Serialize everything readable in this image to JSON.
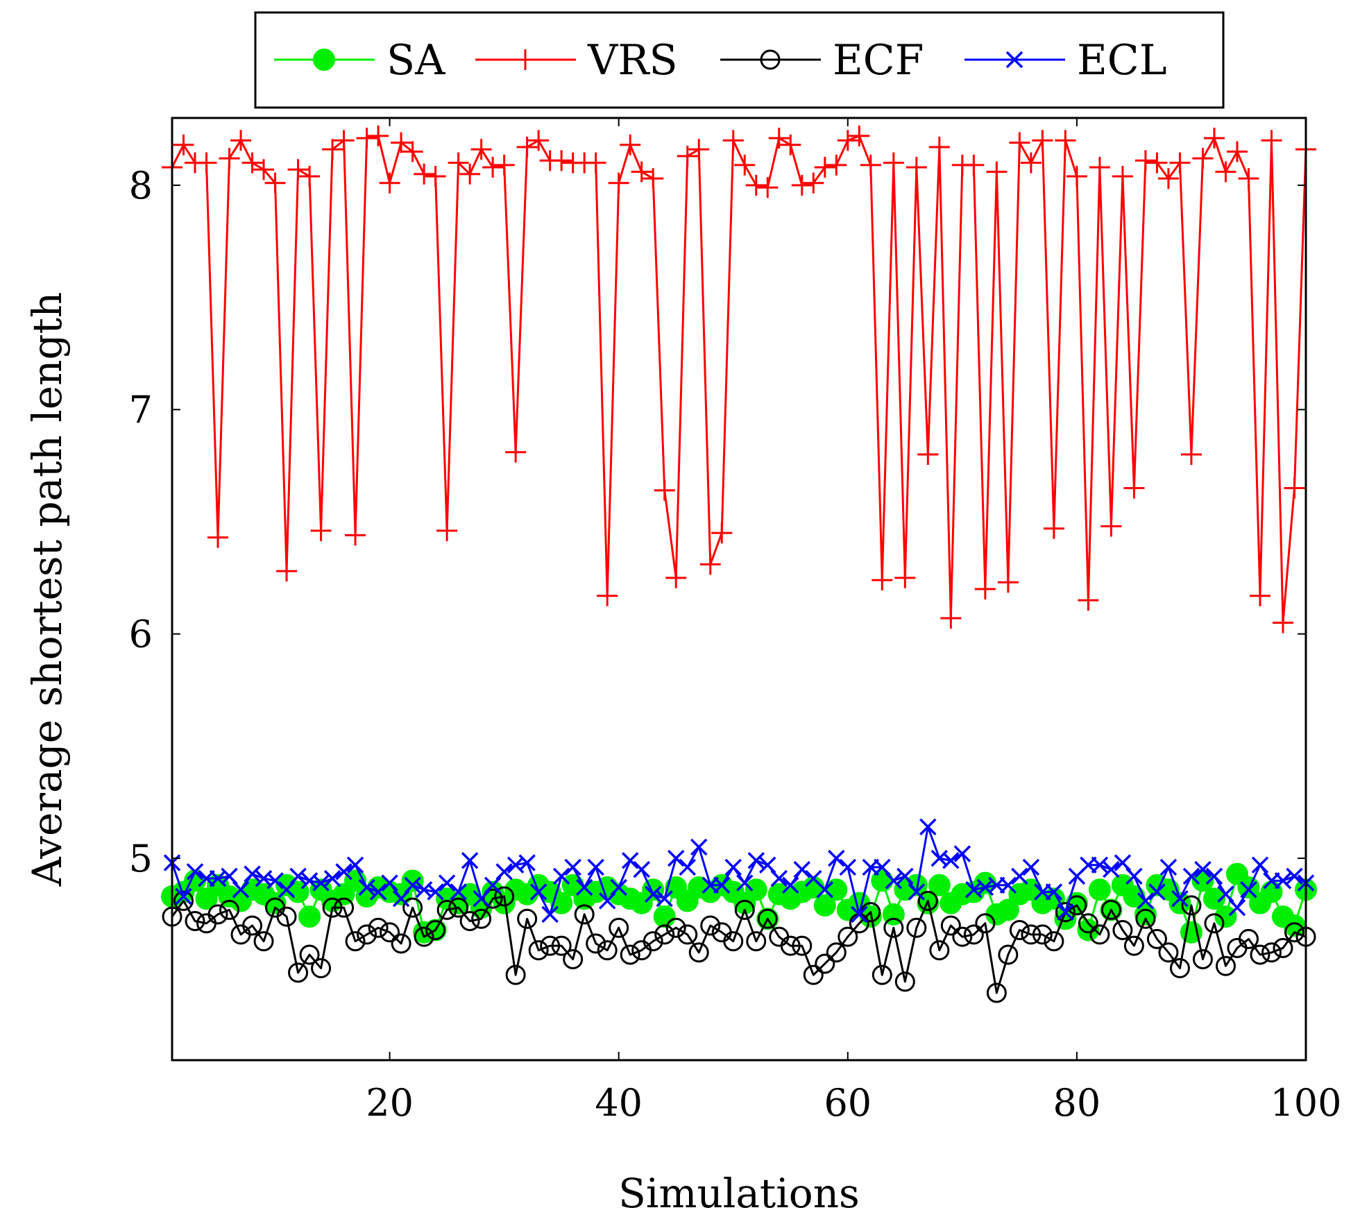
{
  "chart_data": {
    "type": "line",
    "xlabel": "Simulations",
    "ylabel": "Average shortest path length",
    "xlim": [
      1,
      100
    ],
    "ylim": [
      4.1,
      8.3
    ],
    "xticks": [
      20,
      40,
      60,
      80,
      100
    ],
    "yticks": [
      5,
      6,
      7,
      8
    ],
    "grid": false,
    "legend_position": "top",
    "series": [
      {
        "name": "SA",
        "color": "#00ee00",
        "marker": "filled-circle",
        "x": [
          1,
          2,
          3,
          4,
          5,
          6,
          7,
          8,
          9,
          10,
          11,
          12,
          13,
          14,
          15,
          16,
          17,
          18,
          19,
          20,
          21,
          22,
          23,
          24,
          25,
          26,
          27,
          28,
          29,
          30,
          31,
          32,
          33,
          34,
          35,
          36,
          37,
          38,
          39,
          40,
          41,
          42,
          43,
          44,
          45,
          46,
          47,
          48,
          49,
          50,
          51,
          52,
          53,
          54,
          55,
          56,
          57,
          58,
          59,
          60,
          61,
          62,
          63,
          64,
          65,
          66,
          67,
          68,
          69,
          70,
          71,
          72,
          73,
          74,
          75,
          76,
          77,
          78,
          79,
          80,
          81,
          82,
          83,
          84,
          85,
          86,
          87,
          88,
          89,
          90,
          91,
          92,
          93,
          94,
          95,
          96,
          97,
          98,
          99,
          100
        ],
        "values": [
          4.83,
          4.85,
          4.9,
          4.82,
          4.88,
          4.83,
          4.81,
          4.86,
          4.84,
          4.8,
          4.88,
          4.85,
          4.74,
          4.86,
          4.81,
          4.84,
          4.9,
          4.83,
          4.87,
          4.85,
          4.84,
          4.9,
          4.67,
          4.68,
          4.82,
          4.8,
          4.84,
          4.78,
          4.85,
          4.8,
          4.86,
          4.84,
          4.88,
          4.85,
          4.8,
          4.88,
          4.82,
          4.85,
          4.87,
          4.84,
          4.82,
          4.8,
          4.86,
          4.74,
          4.87,
          4.81,
          4.87,
          4.85,
          4.88,
          4.85,
          4.8,
          4.86,
          4.73,
          4.84,
          4.82,
          4.85,
          4.87,
          4.79,
          4.86,
          4.77,
          4.8,
          4.74,
          4.9,
          4.75,
          4.86,
          4.88,
          4.8,
          4.88,
          4.8,
          4.84,
          4.85,
          4.89,
          4.75,
          4.77,
          4.84,
          4.86,
          4.8,
          4.82,
          4.73,
          4.8,
          4.68,
          4.86,
          4.77,
          4.88,
          4.83,
          4.75,
          4.88,
          4.86,
          4.8,
          4.67,
          4.9,
          4.82,
          4.74,
          4.93,
          4.87,
          4.8,
          4.85,
          4.74,
          4.7,
          4.86
        ]
      },
      {
        "name": "VRS",
        "color": "#ff0000",
        "marker": "plus",
        "x": [
          1,
          2,
          3,
          4,
          5,
          6,
          7,
          8,
          9,
          10,
          11,
          12,
          13,
          14,
          15,
          16,
          17,
          18,
          19,
          20,
          21,
          22,
          23,
          24,
          25,
          26,
          27,
          28,
          29,
          30,
          31,
          32,
          33,
          34,
          35,
          36,
          37,
          38,
          39,
          40,
          41,
          42,
          43,
          44,
          45,
          46,
          47,
          48,
          49,
          50,
          51,
          52,
          53,
          54,
          55,
          56,
          57,
          58,
          59,
          60,
          61,
          62,
          63,
          64,
          65,
          66,
          67,
          68,
          69,
          70,
          71,
          72,
          73,
          74,
          75,
          76,
          77,
          78,
          79,
          80,
          81,
          82,
          83,
          84,
          85,
          86,
          87,
          88,
          89,
          90,
          91,
          92,
          93,
          94,
          95,
          96,
          97,
          98,
          99,
          100
        ],
        "values": [
          8.08,
          8.18,
          8.1,
          8.1,
          6.43,
          8.12,
          8.2,
          8.1,
          8.07,
          8.01,
          6.28,
          8.07,
          8.04,
          6.46,
          8.16,
          8.2,
          6.44,
          8.21,
          8.22,
          8.01,
          8.19,
          8.15,
          8.05,
          8.04,
          6.46,
          8.1,
          8.05,
          8.16,
          8.08,
          8.09,
          6.81,
          8.17,
          8.2,
          8.11,
          8.11,
          8.1,
          8.1,
          8.1,
          6.17,
          8.01,
          8.18,
          8.06,
          8.03,
          6.64,
          6.25,
          8.13,
          8.16,
          6.31,
          6.45,
          8.2,
          8.09,
          8.0,
          7.99,
          8.21,
          8.18,
          8.0,
          8.01,
          8.08,
          8.09,
          8.2,
          8.22,
          8.09,
          6.24,
          8.1,
          6.25,
          8.08,
          6.8,
          8.17,
          6.07,
          8.09,
          8.09,
          6.2,
          8.06,
          6.23,
          8.19,
          8.1,
          8.2,
          6.47,
          8.2,
          8.04,
          6.15,
          8.08,
          6.48,
          8.04,
          6.65,
          8.11,
          8.1,
          8.03,
          8.1,
          6.8,
          8.12,
          8.21,
          8.06,
          8.15,
          8.03,
          6.17,
          8.2,
          6.05,
          6.65,
          8.16
        ]
      },
      {
        "name": "ECF",
        "color": "#000000",
        "marker": "open-circle",
        "x": [
          1,
          2,
          3,
          4,
          5,
          6,
          7,
          8,
          9,
          10,
          11,
          12,
          13,
          14,
          15,
          16,
          17,
          18,
          19,
          20,
          21,
          22,
          23,
          24,
          25,
          26,
          27,
          28,
          29,
          30,
          31,
          32,
          33,
          34,
          35,
          36,
          37,
          38,
          39,
          40,
          41,
          42,
          43,
          44,
          45,
          46,
          47,
          48,
          49,
          50,
          51,
          52,
          53,
          54,
          55,
          56,
          57,
          58,
          59,
          60,
          61,
          62,
          63,
          64,
          65,
          66,
          67,
          68,
          69,
          70,
          71,
          72,
          73,
          74,
          75,
          76,
          77,
          78,
          79,
          80,
          81,
          82,
          83,
          84,
          85,
          86,
          87,
          88,
          89,
          90,
          91,
          92,
          93,
          94,
          95,
          96,
          97,
          98,
          99,
          100
        ],
        "values": [
          4.74,
          4.81,
          4.72,
          4.71,
          4.75,
          4.77,
          4.66,
          4.7,
          4.63,
          4.78,
          4.74,
          4.49,
          4.57,
          4.51,
          4.78,
          4.78,
          4.63,
          4.66,
          4.69,
          4.67,
          4.62,
          4.78,
          4.65,
          4.68,
          4.77,
          4.78,
          4.72,
          4.73,
          4.82,
          4.83,
          4.48,
          4.73,
          4.59,
          4.61,
          4.61,
          4.55,
          4.75,
          4.62,
          4.59,
          4.69,
          4.57,
          4.59,
          4.63,
          4.66,
          4.69,
          4.66,
          4.58,
          4.7,
          4.67,
          4.63,
          4.77,
          4.63,
          4.73,
          4.65,
          4.61,
          4.61,
          4.48,
          4.53,
          4.58,
          4.65,
          4.71,
          4.76,
          4.48,
          4.69,
          4.45,
          4.69,
          4.81,
          4.59,
          4.7,
          4.65,
          4.66,
          4.71,
          4.4,
          4.57,
          4.68,
          4.66,
          4.66,
          4.63,
          4.76,
          4.79,
          4.71,
          4.66,
          4.77,
          4.68,
          4.61,
          4.73,
          4.64,
          4.58,
          4.51,
          4.79,
          4.55,
          4.71,
          4.52,
          4.6,
          4.64,
          4.57,
          4.58,
          4.6,
          4.67,
          4.65
        ]
      },
      {
        "name": "ECL",
        "color": "#0000ff",
        "marker": "cross",
        "x": [
          1,
          2,
          3,
          4,
          5,
          6,
          7,
          8,
          9,
          10,
          11,
          12,
          13,
          14,
          15,
          16,
          17,
          18,
          19,
          20,
          21,
          22,
          23,
          24,
          25,
          26,
          27,
          28,
          29,
          30,
          31,
          32,
          33,
          34,
          35,
          36,
          37,
          38,
          39,
          40,
          41,
          42,
          43,
          44,
          45,
          46,
          47,
          48,
          49,
          50,
          51,
          52,
          53,
          54,
          55,
          56,
          57,
          58,
          59,
          60,
          61,
          62,
          63,
          64,
          65,
          66,
          67,
          68,
          69,
          70,
          71,
          72,
          73,
          74,
          75,
          76,
          77,
          78,
          79,
          80,
          81,
          82,
          83,
          84,
          85,
          86,
          87,
          88,
          89,
          90,
          91,
          92,
          93,
          94,
          95,
          96,
          97,
          98,
          99,
          100
        ],
        "values": [
          4.98,
          4.83,
          4.94,
          4.91,
          4.91,
          4.92,
          4.86,
          4.93,
          4.91,
          4.9,
          4.86,
          4.92,
          4.9,
          4.89,
          4.91,
          4.94,
          4.97,
          4.87,
          4.85,
          4.89,
          4.82,
          4.88,
          4.86,
          4.85,
          4.89,
          4.85,
          4.99,
          4.82,
          4.88,
          4.94,
          4.97,
          4.98,
          4.85,
          4.75,
          4.92,
          4.96,
          4.87,
          4.96,
          4.81,
          4.87,
          4.99,
          4.95,
          4.84,
          4.82,
          5.0,
          4.96,
          5.05,
          4.88,
          4.88,
          4.96,
          4.89,
          4.99,
          4.97,
          4.91,
          4.88,
          4.95,
          4.91,
          4.86,
          5.0,
          4.96,
          4.75,
          4.96,
          4.96,
          4.9,
          4.92,
          4.85,
          5.14,
          5.0,
          4.99,
          5.02,
          4.86,
          4.87,
          4.88,
          4.88,
          4.92,
          4.96,
          4.85,
          4.85,
          4.76,
          4.92,
          4.97,
          4.97,
          4.95,
          4.98,
          4.92,
          4.81,
          4.85,
          4.96,
          4.82,
          4.92,
          4.95,
          4.92,
          4.84,
          4.78,
          4.86,
          4.97,
          4.9,
          4.9,
          4.92,
          4.89
        ]
      }
    ]
  }
}
